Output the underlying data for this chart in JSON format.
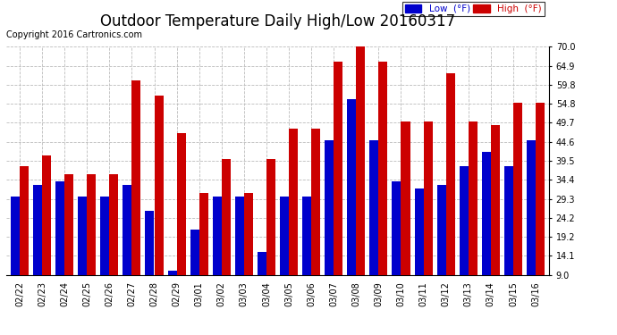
{
  "title": "Outdoor Temperature Daily High/Low 20160317",
  "copyright": "Copyright 2016 Cartronics.com",
  "dates": [
    "02/22",
    "02/23",
    "02/24",
    "02/25",
    "02/26",
    "02/27",
    "02/28",
    "02/29",
    "03/01",
    "03/02",
    "03/03",
    "03/04",
    "03/05",
    "03/06",
    "03/07",
    "03/08",
    "03/09",
    "03/10",
    "03/11",
    "03/12",
    "03/13",
    "03/14",
    "03/15",
    "03/16"
  ],
  "low": [
    30,
    33,
    34,
    30,
    30,
    33,
    26,
    10,
    21,
    30,
    30,
    15,
    30,
    30,
    45,
    56,
    45,
    34,
    32,
    33,
    38,
    42,
    38,
    45
  ],
  "high": [
    38,
    41,
    36,
    36,
    36,
    61,
    57,
    47,
    31,
    40,
    31,
    40,
    48,
    48,
    66,
    71,
    66,
    50,
    50,
    63,
    50,
    49,
    55,
    55
  ],
  "low_color": "#0000cc",
  "high_color": "#cc0000",
  "ymin": 9.0,
  "ymax": 70.0,
  "yticks": [
    9.0,
    14.1,
    19.2,
    24.2,
    29.3,
    34.4,
    39.5,
    44.6,
    49.7,
    54.8,
    59.8,
    64.9,
    70.0
  ],
  "background_color": "#ffffff",
  "grid_color": "#bbbbbb",
  "title_fontsize": 12,
  "copyright_fontsize": 7,
  "legend_low_label": "Low  (°F)",
  "legend_high_label": "High  (°F)"
}
